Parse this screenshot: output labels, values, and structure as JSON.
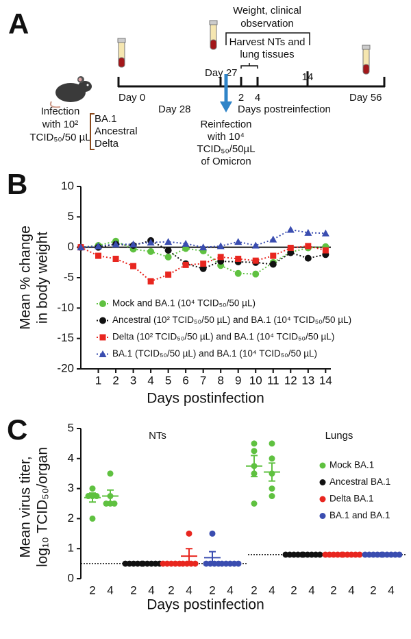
{
  "panel_labels": [
    "A",
    "B",
    "C"
  ],
  "diagram": {
    "observation": [
      "Weight, clinical",
      "observation"
    ],
    "harvest": [
      "Harvest NTs and",
      "lung tissues"
    ],
    "timeline": [
      "Day 0",
      "Day 27",
      "Day 56"
    ],
    "reinfection_day": "Day 28",
    "postreinfection_days": [
      "2",
      "4",
      "14"
    ],
    "postreinfection_label": "Days postreinfection",
    "infection": [
      "Infection",
      "with 10²",
      "TCID₅₀/50 µL"
    ],
    "variants": [
      "BA.1",
      "Ancestral",
      "Delta"
    ],
    "reinfection": [
      "Reinfection",
      "with 10⁴",
      "TCID₅₀/50µL",
      "of Omicron"
    ]
  },
  "chart_data": [
    {
      "type": "line",
      "xlabel": "Days postinfection",
      "ylabel": [
        "Mean % change",
        "in body weight"
      ],
      "x": [
        0,
        1,
        2,
        3,
        4,
        5,
        6,
        7,
        8,
        9,
        10,
        11,
        12,
        13,
        14
      ],
      "xlim": [
        0,
        14.3
      ],
      "xticks": [
        1,
        2,
        3,
        4,
        5,
        6,
        7,
        8,
        9,
        10,
        11,
        12,
        13,
        14
      ],
      "ylim": [
        -20,
        10
      ],
      "yticks": [
        -20,
        -15,
        -10,
        -5,
        0,
        5,
        10
      ],
      "zero_line": true,
      "legend": "lower-left",
      "series": [
        {
          "name": "Mock and BA.1 (10⁴ TCID₅₀/50 µL)",
          "color": "#5fc140",
          "marker": "circle",
          "values": [
            0,
            0.3,
            1.0,
            -0.3,
            -0.7,
            -1.6,
            -0.2,
            -0.6,
            -3.0,
            -4.3,
            -4.4,
            -2.5,
            -0.8,
            -0.1,
            0.1
          ]
        },
        {
          "name": "Ancestral (10² TCID₅₀/50 µL) and BA.1 (10⁴ TCID₅₀/50 µL)",
          "color": "#111111",
          "marker": "circle",
          "values": [
            0,
            0,
            0.5,
            0.3,
            1.1,
            -0.5,
            -2.7,
            -3.5,
            -2.3,
            -2.4,
            -2.5,
            -2.8,
            -0.9,
            -1.8,
            -1.2
          ]
        },
        {
          "name": "Delta (10² TCID₅₀/50 µL) and BA.1 (10⁴ TCID₅₀/50 µL)",
          "color": "#e8261f",
          "marker": "square",
          "values": [
            0,
            -1.4,
            -1.9,
            -3.1,
            -5.6,
            -4.5,
            -2.9,
            -2.7,
            -1.6,
            -1.9,
            -2.2,
            -1.4,
            -0.1,
            0.2,
            -0.5
          ]
        },
        {
          "name": "BA.1 (TCID₅₀/50 µL) and BA.1 (10⁴ TCID₅₀/50 µL)",
          "color": "#3a4db0",
          "marker": "triangle",
          "values": [
            0,
            0.2,
            0.5,
            0.5,
            0.8,
            0.9,
            0.6,
            0,
            0.2,
            0.9,
            0.3,
            1.3,
            2.9,
            2.4,
            2.3
          ]
        }
      ]
    },
    {
      "type": "dotplot",
      "groups": [
        "NTs",
        "Lungs"
      ],
      "categories": [
        "2",
        "4"
      ],
      "xlabel": "Days postinfection",
      "ylabel": [
        "Mean virus titer,",
        "log₁₀ TCID₅₀/organ"
      ],
      "ylim": [
        0,
        5
      ],
      "yticks": [
        0,
        1,
        2,
        3,
        4,
        5
      ],
      "detection_limits": [
        0.5,
        0.8
      ],
      "legend": "upper-right",
      "series": [
        {
          "name": "Mock BA.1",
          "color": "#5fc140",
          "values": [
            [
              3.0,
              2.75,
              2.75,
              2.75,
              2.0
            ],
            [
              3.5,
              2.75,
              2.5,
              2.5,
              2.5
            ],
            [
              4.5,
              4.25,
              3.75,
              3.5,
              2.5
            ],
            [
              4.5,
              4.0,
              3.5,
              3.0,
              2.75
            ]
          ],
          "means": [
            2.7,
            2.75,
            3.75,
            3.55
          ],
          "errors": [
            0.15,
            0.2,
            0.35,
            0.3
          ]
        },
        {
          "name": "Ancestral BA.1",
          "color": "#111111",
          "values": [
            [
              0.5,
              0.5,
              0.5,
              0.5,
              0.5
            ],
            [
              0.5,
              0.5,
              0.5,
              0.5,
              0.5
            ],
            [
              0.8,
              0.8,
              0.8,
              0.8,
              0.8
            ],
            [
              0.8,
              0.8,
              0.8,
              0.8,
              0.8
            ]
          ],
          "means": [
            0.5,
            0.5,
            0.8,
            0.8
          ],
          "errors": [
            0,
            0,
            0,
            0
          ]
        },
        {
          "name": "Delta BA.1",
          "color": "#e8261f",
          "values": [
            [
              0.5,
              0.5,
              0.5,
              0.5,
              0.5
            ],
            [
              1.5,
              0.5,
              0.5,
              0.5,
              0.5
            ],
            [
              0.8,
              0.8,
              0.8,
              0.8,
              0.8
            ],
            [
              0.8,
              0.8,
              0.8,
              0.8,
              0.8
            ]
          ],
          "means": [
            0.5,
            0.75,
            0.8,
            0.8
          ],
          "errors": [
            0,
            0.25,
            0,
            0
          ]
        },
        {
          "name": "BA.1 and BA.1",
          "color": "#3a4db0",
          "values": [
            [
              1.5,
              0.5,
              0.5,
              0.5,
              0.5
            ],
            [
              0.5,
              0.5,
              0.5,
              0.5,
              0.5
            ],
            [
              0.8,
              0.8,
              0.8,
              0.8,
              0.8
            ],
            [
              0.8,
              0.8,
              0.8,
              0.8,
              0.8
            ]
          ],
          "means": [
            0.7,
            0.5,
            0.8,
            0.8
          ],
          "errors": [
            0.2,
            0,
            0,
            0
          ]
        }
      ]
    }
  ]
}
